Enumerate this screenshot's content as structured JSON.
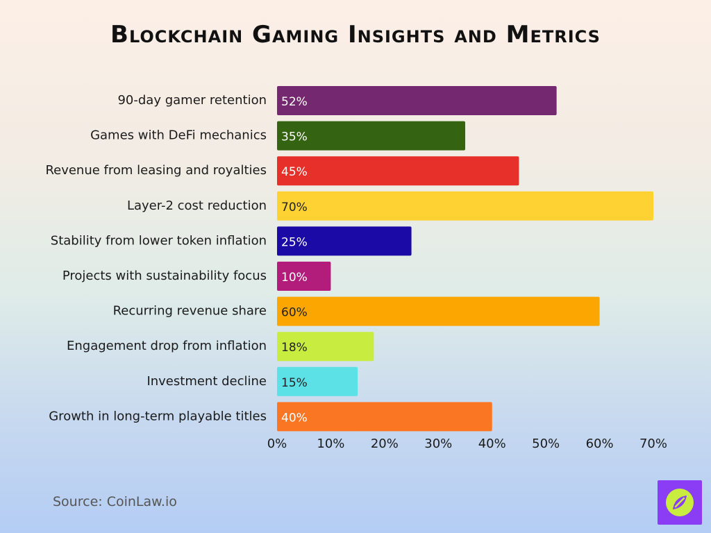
{
  "title": "Blockchain Gaming Insights and Metrics",
  "source": "Source: CoinLaw.io",
  "logo_icon": "compass-leaf-icon",
  "chart_data": {
    "type": "bar",
    "orientation": "horizontal",
    "title": "Blockchain Gaming Insights and Metrics",
    "categories": [
      "90-day gamer retention",
      "Games with DeFi mechanics",
      "Revenue from leasing and royalties",
      "Layer-2 cost reduction",
      "Stability from lower token inflation",
      "Projects with sustainability focus",
      "Recurring revenue share",
      "Engagement drop from inflation",
      "Investment decline",
      "Growth in long-term playable titles"
    ],
    "values": [
      52,
      35,
      45,
      70,
      25,
      10,
      60,
      18,
      15,
      40
    ],
    "value_labels": [
      "52%",
      "35%",
      "45%",
      "70%",
      "25%",
      "10%",
      "60%",
      "18%",
      "15%",
      "40%"
    ],
    "colors": [
      "#74286f",
      "#346412",
      "#e8302a",
      "#fed232",
      "#1b0aa6",
      "#b21c7a",
      "#fba601",
      "#c8ec40",
      "#5ce2e6",
      "#fb7622"
    ],
    "label_colors": [
      "#ffffff",
      "#ffffff",
      "#ffffff",
      "#222222",
      "#ffffff",
      "#ffffff",
      "#222222",
      "#222222",
      "#222222",
      "#ffffff"
    ],
    "xlim": [
      0,
      70
    ],
    "xticks": [
      0,
      10,
      20,
      30,
      40,
      50,
      60,
      70
    ],
    "xtick_labels": [
      "0%",
      "10%",
      "20%",
      "30%",
      "40%",
      "50%",
      "60%",
      "70%"
    ],
    "grid": false,
    "legend": "none"
  }
}
